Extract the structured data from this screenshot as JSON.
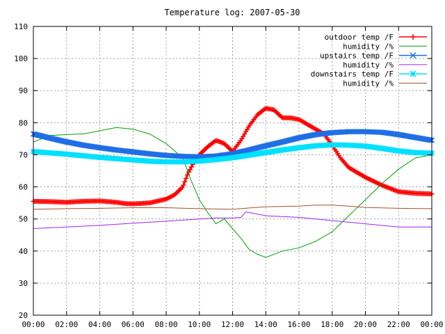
{
  "chart_data": {
    "type": "line",
    "title": "Temperature log: 2007-05-30",
    "xlabel": "",
    "ylabel": "",
    "ylim": [
      20,
      110
    ],
    "y_ticks": [
      "20",
      "30",
      "40",
      "50",
      "60",
      "70",
      "80",
      "90",
      "100",
      "110"
    ],
    "x_ticks": [
      "00:00",
      "02:00",
      "04:00",
      "06:00",
      "08:00",
      "10:00",
      "12:00",
      "14:00",
      "16:00",
      "18:00",
      "20:00",
      "22:00",
      "00:00"
    ],
    "x_range_hours": [
      0,
      24
    ],
    "grid": true,
    "legend_position": "top-right",
    "series": [
      {
        "name": "outdoor temp /F",
        "color": "#ff0000",
        "marker": "plus",
        "x": [
          0,
          1,
          2,
          3,
          4,
          5,
          5.5,
          6,
          7,
          8,
          8.5,
          9,
          9.3,
          9.6,
          10,
          10.5,
          11,
          11.5,
          12,
          12.5,
          13,
          13.5,
          14,
          14.5,
          15,
          15.5,
          16,
          16.5,
          17,
          17.5,
          18,
          18.5,
          19,
          20,
          21,
          22,
          23,
          24
        ],
        "values": [
          55.5,
          55.4,
          55.2,
          55.5,
          55.6,
          55.2,
          54.8,
          54.7,
          55.0,
          56.2,
          57.5,
          60,
          64,
          67,
          70,
          72.5,
          74.5,
          73.5,
          71,
          74.5,
          79,
          82.5,
          84.5,
          84,
          81.5,
          81.5,
          81,
          79.5,
          78,
          76.5,
          73,
          69,
          66,
          63,
          60.5,
          58.5,
          58,
          57.8
        ]
      },
      {
        "name": "humidity /%",
        "color": "#00a000",
        "marker": "none",
        "x": [
          0,
          1,
          2,
          3,
          4,
          5,
          6,
          7,
          8,
          9,
          9.5,
          10,
          10.5,
          11,
          11.5,
          12,
          12.5,
          13,
          13.5,
          14,
          15,
          16,
          17,
          18,
          19,
          20,
          21,
          22,
          23,
          24
        ],
        "values": [
          74,
          76,
          76.3,
          76.5,
          77.5,
          78.5,
          78,
          76.5,
          73.5,
          69,
          62,
          56,
          52,
          48.5,
          50,
          47,
          44,
          40.5,
          39,
          38,
          40,
          41,
          43,
          46,
          51,
          56,
          61,
          65.5,
          69,
          70
        ]
      },
      {
        "name": "upstairs temp /F",
        "color": "#1e6ee6",
        "marker": "cross",
        "x": [
          0,
          1,
          2,
          3,
          4,
          5,
          6,
          7,
          8,
          9,
          10,
          11,
          12,
          13,
          14,
          15,
          16,
          17,
          18,
          19,
          20,
          21,
          22,
          23,
          24
        ],
        "values": [
          76.5,
          75.2,
          74,
          73,
          72.2,
          71.5,
          70.9,
          70.3,
          69.8,
          69.5,
          69.4,
          69.6,
          70.3,
          71.5,
          72.8,
          74,
          75.3,
          76.3,
          76.9,
          77.2,
          77.2,
          77,
          76.3,
          75.4,
          74.5
        ]
      },
      {
        "name": "humidity /%",
        "color": "#a020f0",
        "marker": "none",
        "x": [
          0,
          2,
          4,
          6,
          8,
          10,
          11,
          12,
          12.5,
          12.8,
          13,
          14,
          16,
          18,
          20,
          22,
          24
        ],
        "values": [
          47,
          47.5,
          48,
          48.7,
          49.3,
          50,
          50.3,
          50.3,
          50.5,
          52.2,
          52,
          51,
          50.5,
          49.5,
          48.5,
          47.5,
          47.5
        ]
      },
      {
        "name": "downstairs temp /F",
        "color": "#00e0ff",
        "marker": "star",
        "x": [
          0,
          1,
          2,
          3,
          4,
          5,
          6,
          7,
          8,
          9,
          10,
          11,
          12,
          13,
          14,
          15,
          16,
          17,
          18,
          19,
          20,
          21,
          22,
          23,
          24
        ],
        "values": [
          71,
          70.6,
          70.2,
          69.7,
          69.2,
          68.8,
          68.4,
          68,
          67.8,
          67.8,
          68,
          68.5,
          69.1,
          69.9,
          70.7,
          71.5,
          72.2,
          72.8,
          73.1,
          73,
          72.7,
          72,
          71.2,
          70.7,
          70.5
        ]
      },
      {
        "name": "humidity /%",
        "color": "#a0522d",
        "marker": "none",
        "x": [
          0,
          2,
          4,
          6,
          8,
          10,
          12,
          14,
          16,
          17,
          18,
          19,
          20,
          22,
          24
        ],
        "values": [
          53,
          53.2,
          53.3,
          53.5,
          53.5,
          53.2,
          53,
          53.8,
          54,
          54.3,
          54.3,
          54,
          53.6,
          53.3,
          53.2
        ]
      }
    ]
  }
}
